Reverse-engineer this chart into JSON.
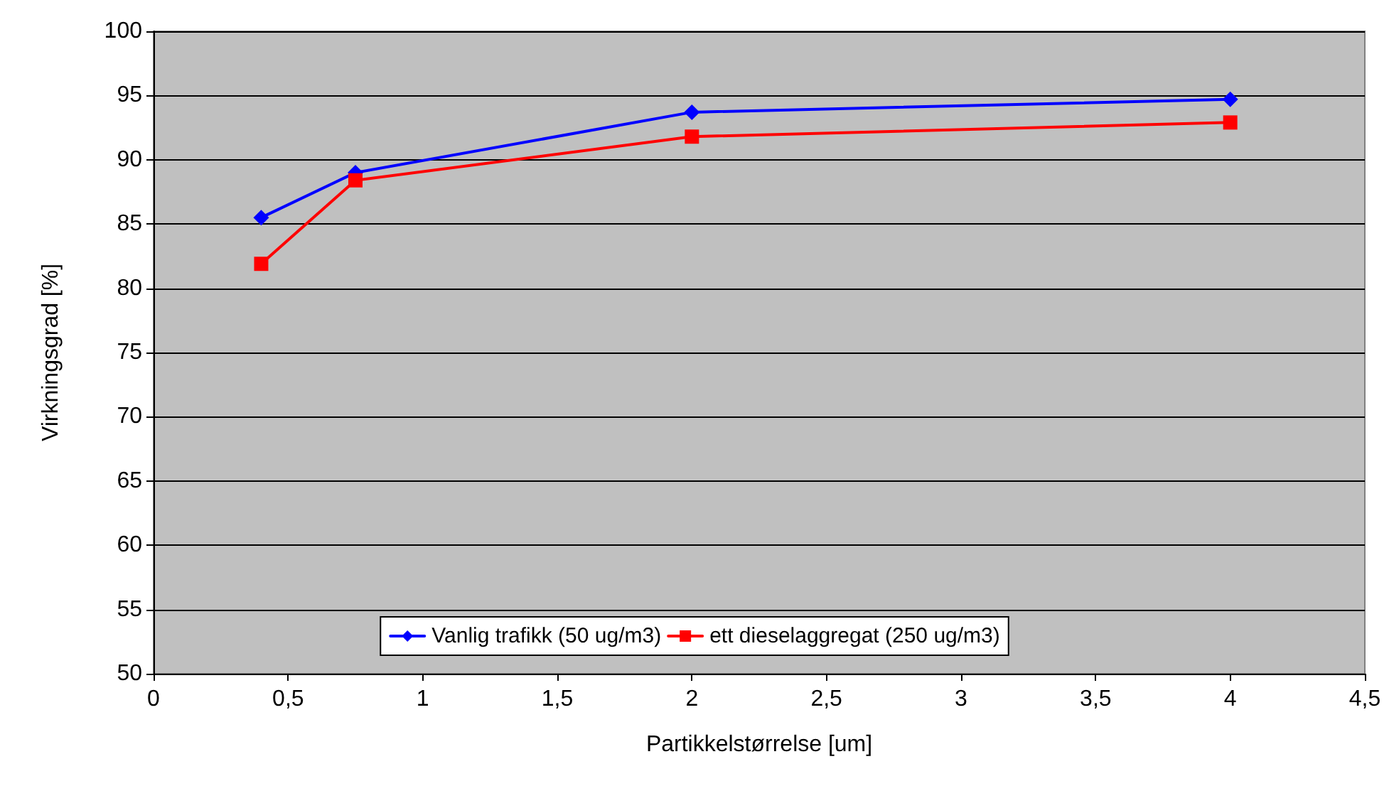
{
  "chart_data": {
    "type": "line",
    "xlabel": "Partikkelstørrelse [um]",
    "ylabel": "Virkningsgrad [%]",
    "xlim": [
      0,
      4.5
    ],
    "xticks": [
      0,
      {
        "value": 0.5,
        "label": "0,5"
      },
      1,
      {
        "value": 1.5,
        "label": "1,5"
      },
      2,
      {
        "value": 2.5,
        "label": "2,5"
      },
      3,
      {
        "value": 3.5,
        "label": "3,5"
      },
      4,
      {
        "value": 4.5,
        "label": "4,5"
      }
    ],
    "ylim": [
      50,
      100
    ],
    "yticks": [
      50,
      55,
      60,
      65,
      70,
      75,
      80,
      85,
      90,
      95,
      100
    ],
    "grid": "y",
    "legend": "bottom",
    "line_style": "solid",
    "series": [
      {
        "name": "Vanlig trafikk (50 ug/m3)",
        "color": "#0000ff",
        "marker": "diamond",
        "x": [
          0.4,
          0.75,
          2,
          4
        ],
        "values": [
          85.5,
          89.0,
          93.7,
          94.7
        ]
      },
      {
        "name": "ett dieselaggregat (250 ug/m3)",
        "color": "#ff0000",
        "marker": "square",
        "x": [
          0.4,
          0.75,
          2,
          4
        ],
        "values": [
          81.9,
          88.4,
          91.8,
          92.9
        ]
      }
    ]
  }
}
